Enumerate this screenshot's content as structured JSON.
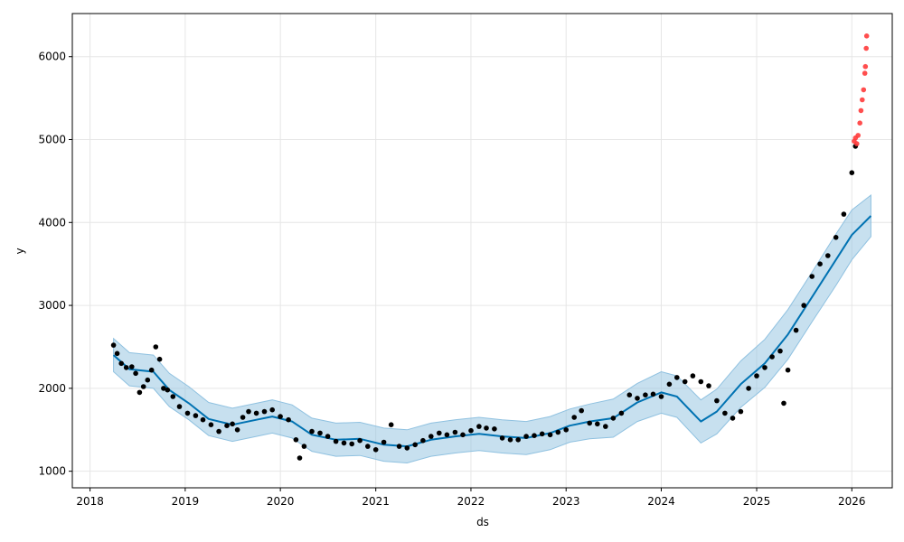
{
  "chart_data": {
    "type": "scatter",
    "xlabel": "ds",
    "ylabel": "y",
    "xlim": [
      "2017-10-25",
      "2026-06-05"
    ],
    "ylim": [
      800,
      6520
    ],
    "grid": true,
    "x_ticks": [
      "2018",
      "2019",
      "2020",
      "2021",
      "2022",
      "2023",
      "2024",
      "2025",
      "2026"
    ],
    "x_tick_dates": [
      "2018-01-01",
      "2019-01-01",
      "2020-01-01",
      "2021-01-01",
      "2022-01-01",
      "2023-01-01",
      "2024-01-01",
      "2025-01-01",
      "2026-01-01"
    ],
    "y_ticks": [
      1000,
      2000,
      3000,
      4000,
      5000,
      6000
    ],
    "colors": {
      "observed": "#000000",
      "forecast": "#0072B2",
      "interval": "#8FC1E0",
      "outliers": "#FF3B3B",
      "grid": "#E6E6E6"
    },
    "series": [
      {
        "role": "forecast",
        "points": [
          [
            "2018-04-01",
            2400
          ],
          [
            "2018-06-01",
            2230
          ],
          [
            "2018-09-01",
            2200
          ],
          [
            "2018-11-01",
            1980
          ],
          [
            "2019-01-15",
            1820
          ],
          [
            "2019-04-01",
            1630
          ],
          [
            "2019-07-01",
            1560
          ],
          [
            "2019-10-01",
            1620
          ],
          [
            "2019-12-01",
            1660
          ],
          [
            "2020-02-15",
            1600
          ],
          [
            "2020-05-01",
            1440
          ],
          [
            "2020-08-01",
            1380
          ],
          [
            "2020-11-01",
            1390
          ],
          [
            "2021-02-01",
            1320
          ],
          [
            "2021-05-01",
            1300
          ],
          [
            "2021-08-01",
            1380
          ],
          [
            "2021-11-01",
            1420
          ],
          [
            "2022-02-01",
            1450
          ],
          [
            "2022-05-01",
            1420
          ],
          [
            "2022-08-01",
            1400
          ],
          [
            "2022-11-01",
            1460
          ],
          [
            "2023-01-15",
            1550
          ],
          [
            "2023-04-01",
            1600
          ],
          [
            "2023-07-01",
            1640
          ],
          [
            "2023-10-01",
            1830
          ],
          [
            "2024-01-01",
            1950
          ],
          [
            "2024-03-01",
            1900
          ],
          [
            "2024-06-01",
            1600
          ],
          [
            "2024-08-01",
            1720
          ],
          [
            "2024-11-01",
            2050
          ],
          [
            "2025-02-01",
            2300
          ],
          [
            "2025-05-01",
            2650
          ],
          [
            "2025-08-01",
            3100
          ],
          [
            "2025-11-01",
            3550
          ],
          [
            "2026-01-01",
            3850
          ],
          [
            "2026-03-15",
            4080
          ]
        ]
      },
      {
        "role": "interval",
        "upper": [
          [
            "2018-04-01",
            2600
          ],
          [
            "2018-06-01",
            2430
          ],
          [
            "2018-09-01",
            2400
          ],
          [
            "2018-11-01",
            2180
          ],
          [
            "2019-01-15",
            2020
          ],
          [
            "2019-04-01",
            1830
          ],
          [
            "2019-07-01",
            1760
          ],
          [
            "2019-10-01",
            1820
          ],
          [
            "2019-12-01",
            1860
          ],
          [
            "2020-02-15",
            1800
          ],
          [
            "2020-05-01",
            1640
          ],
          [
            "2020-08-01",
            1580
          ],
          [
            "2020-11-01",
            1590
          ],
          [
            "2021-02-01",
            1520
          ],
          [
            "2021-05-01",
            1500
          ],
          [
            "2021-08-01",
            1580
          ],
          [
            "2021-11-01",
            1620
          ],
          [
            "2022-02-01",
            1650
          ],
          [
            "2022-05-01",
            1620
          ],
          [
            "2022-08-01",
            1600
          ],
          [
            "2022-11-01",
            1660
          ],
          [
            "2023-01-15",
            1750
          ],
          [
            "2023-04-01",
            1810
          ],
          [
            "2023-07-01",
            1870
          ],
          [
            "2023-10-01",
            2060
          ],
          [
            "2024-01-01",
            2200
          ],
          [
            "2024-03-01",
            2150
          ],
          [
            "2024-06-01",
            1860
          ],
          [
            "2024-08-01",
            1990
          ],
          [
            "2024-11-01",
            2330
          ],
          [
            "2025-02-01",
            2590
          ],
          [
            "2025-05-01",
            2950
          ],
          [
            "2025-08-01",
            3400
          ],
          [
            "2025-11-01",
            3860
          ],
          [
            "2026-01-01",
            4150
          ],
          [
            "2026-03-15",
            4330
          ]
        ],
        "lower": [
          [
            "2018-04-01",
            2200
          ],
          [
            "2018-06-01",
            2030
          ],
          [
            "2018-09-01",
            2000
          ],
          [
            "2018-11-01",
            1780
          ],
          [
            "2019-01-15",
            1620
          ],
          [
            "2019-04-01",
            1430
          ],
          [
            "2019-07-01",
            1360
          ],
          [
            "2019-10-01",
            1420
          ],
          [
            "2019-12-01",
            1460
          ],
          [
            "2020-02-15",
            1400
          ],
          [
            "2020-05-01",
            1240
          ],
          [
            "2020-08-01",
            1180
          ],
          [
            "2020-11-01",
            1190
          ],
          [
            "2021-02-01",
            1120
          ],
          [
            "2021-05-01",
            1100
          ],
          [
            "2021-08-01",
            1180
          ],
          [
            "2021-11-01",
            1220
          ],
          [
            "2022-02-01",
            1250
          ],
          [
            "2022-05-01",
            1220
          ],
          [
            "2022-08-01",
            1200
          ],
          [
            "2022-11-01",
            1260
          ],
          [
            "2023-01-15",
            1350
          ],
          [
            "2023-04-01",
            1390
          ],
          [
            "2023-07-01",
            1410
          ],
          [
            "2023-10-01",
            1600
          ],
          [
            "2024-01-01",
            1700
          ],
          [
            "2024-03-01",
            1650
          ],
          [
            "2024-06-01",
            1340
          ],
          [
            "2024-08-01",
            1450
          ],
          [
            "2024-11-01",
            1770
          ],
          [
            "2025-02-01",
            2010
          ],
          [
            "2025-05-01",
            2350
          ],
          [
            "2025-08-01",
            2800
          ],
          [
            "2025-11-01",
            3240
          ],
          [
            "2026-01-01",
            3550
          ],
          [
            "2026-03-15",
            3830
          ]
        ]
      },
      {
        "role": "observed",
        "points": [
          [
            "2018-04-01",
            2520
          ],
          [
            "2018-04-15",
            2420
          ],
          [
            "2018-05-01",
            2300
          ],
          [
            "2018-05-20",
            2250
          ],
          [
            "2018-06-10",
            2260
          ],
          [
            "2018-06-25",
            2180
          ],
          [
            "2018-07-10",
            1950
          ],
          [
            "2018-07-25",
            2020
          ],
          [
            "2018-08-10",
            2100
          ],
          [
            "2018-08-25",
            2220
          ],
          [
            "2018-09-10",
            2500
          ],
          [
            "2018-09-25",
            2350
          ],
          [
            "2018-10-10",
            2000
          ],
          [
            "2018-10-25",
            1980
          ],
          [
            "2018-11-15",
            1900
          ],
          [
            "2018-12-10",
            1780
          ],
          [
            "2019-01-10",
            1700
          ],
          [
            "2019-02-10",
            1670
          ],
          [
            "2019-03-10",
            1620
          ],
          [
            "2019-04-10",
            1560
          ],
          [
            "2019-05-10",
            1480
          ],
          [
            "2019-06-10",
            1550
          ],
          [
            "2019-07-01",
            1570
          ],
          [
            "2019-07-20",
            1500
          ],
          [
            "2019-08-10",
            1650
          ],
          [
            "2019-09-01",
            1720
          ],
          [
            "2019-10-01",
            1700
          ],
          [
            "2019-11-01",
            1720
          ],
          [
            "2019-12-01",
            1740
          ],
          [
            "2020-01-01",
            1660
          ],
          [
            "2020-02-01",
            1620
          ],
          [
            "2020-03-01",
            1380
          ],
          [
            "2020-03-15",
            1160
          ],
          [
            "2020-04-01",
            1300
          ],
          [
            "2020-05-01",
            1480
          ],
          [
            "2020-06-01",
            1460
          ],
          [
            "2020-07-01",
            1420
          ],
          [
            "2020-08-01",
            1360
          ],
          [
            "2020-09-01",
            1340
          ],
          [
            "2020-10-01",
            1330
          ],
          [
            "2020-11-01",
            1370
          ],
          [
            "2020-12-01",
            1300
          ],
          [
            "2021-01-01",
            1260
          ],
          [
            "2021-02-01",
            1350
          ],
          [
            "2021-03-01",
            1560
          ],
          [
            "2021-04-01",
            1300
          ],
          [
            "2021-05-01",
            1280
          ],
          [
            "2021-06-01",
            1320
          ],
          [
            "2021-07-01",
            1370
          ],
          [
            "2021-08-01",
            1420
          ],
          [
            "2021-09-01",
            1460
          ],
          [
            "2021-10-01",
            1440
          ],
          [
            "2021-11-01",
            1470
          ],
          [
            "2021-12-01",
            1440
          ],
          [
            "2022-01-01",
            1490
          ],
          [
            "2022-02-01",
            1540
          ],
          [
            "2022-03-01",
            1520
          ],
          [
            "2022-04-01",
            1510
          ],
          [
            "2022-05-01",
            1400
          ],
          [
            "2022-06-01",
            1380
          ],
          [
            "2022-07-01",
            1380
          ],
          [
            "2022-08-01",
            1420
          ],
          [
            "2022-09-01",
            1430
          ],
          [
            "2022-10-01",
            1450
          ],
          [
            "2022-11-01",
            1440
          ],
          [
            "2022-12-01",
            1470
          ],
          [
            "2023-01-01",
            1500
          ],
          [
            "2023-02-01",
            1650
          ],
          [
            "2023-03-01",
            1730
          ],
          [
            "2023-04-01",
            1580
          ],
          [
            "2023-05-01",
            1570
          ],
          [
            "2023-06-01",
            1540
          ],
          [
            "2023-07-01",
            1640
          ],
          [
            "2023-08-01",
            1700
          ],
          [
            "2023-09-01",
            1920
          ],
          [
            "2023-10-01",
            1880
          ],
          [
            "2023-11-01",
            1920
          ],
          [
            "2023-12-01",
            1930
          ],
          [
            "2024-01-01",
            1900
          ],
          [
            "2024-02-01",
            2050
          ],
          [
            "2024-03-01",
            2130
          ],
          [
            "2024-04-01",
            2080
          ],
          [
            "2024-05-01",
            2150
          ],
          [
            "2024-06-01",
            2080
          ],
          [
            "2024-07-01",
            2030
          ],
          [
            "2024-08-01",
            1850
          ],
          [
            "2024-09-01",
            1700
          ],
          [
            "2024-10-01",
            1640
          ],
          [
            "2024-11-01",
            1720
          ],
          [
            "2024-12-01",
            2000
          ],
          [
            "2025-01-01",
            2150
          ],
          [
            "2025-02-01",
            2250
          ],
          [
            "2025-03-01",
            2380
          ],
          [
            "2025-04-01",
            2450
          ],
          [
            "2025-04-15",
            1820
          ],
          [
            "2025-05-01",
            2220
          ],
          [
            "2025-06-01",
            2700
          ],
          [
            "2025-07-01",
            3000
          ],
          [
            "2025-08-01",
            3350
          ],
          [
            "2025-09-01",
            3500
          ],
          [
            "2025-10-01",
            3600
          ],
          [
            "2025-11-01",
            3820
          ],
          [
            "2025-12-01",
            4100
          ],
          [
            "2026-01-01",
            4600
          ],
          [
            "2026-01-15",
            4920
          ]
        ],
        "color": "#000000"
      },
      {
        "role": "outliers",
        "points": [
          [
            "2026-01-10",
            4980
          ],
          [
            "2026-01-15",
            5020
          ],
          [
            "2026-01-20",
            4950
          ],
          [
            "2026-01-25",
            5050
          ],
          [
            "2026-02-01",
            5200
          ],
          [
            "2026-02-05",
            5350
          ],
          [
            "2026-02-10",
            5480
          ],
          [
            "2026-02-15",
            5600
          ],
          [
            "2026-02-20",
            5800
          ],
          [
            "2026-02-22",
            5880
          ],
          [
            "2026-02-25",
            6100
          ],
          [
            "2026-02-27",
            6250
          ]
        ],
        "color": "#FF3B3B"
      }
    ]
  }
}
